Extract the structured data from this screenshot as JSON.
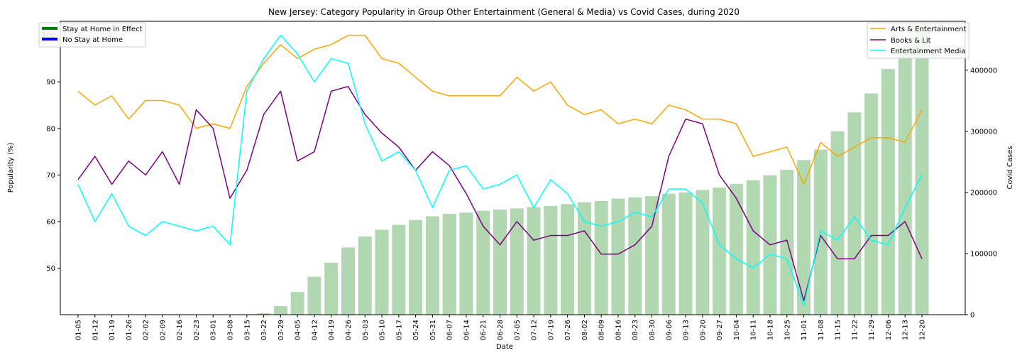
{
  "chart_data": {
    "type": "line",
    "title": "New Jersey: Category Popularity in Group Other Entertainment (General & Media) vs Covid Cases, during 2020",
    "xlabel": "Date",
    "ylabel": "Popularity (%)",
    "y2label": "Covid Cases",
    "ylim": [
      40,
      103
    ],
    "y2lim": [
      0,
      480000
    ],
    "y_ticks": [
      50,
      60,
      70,
      80,
      90,
      100
    ],
    "y2_ticks": [
      0,
      100000,
      200000,
      300000,
      400000
    ],
    "categories": [
      "01-05",
      "01-12",
      "01-19",
      "01-26",
      "02-02",
      "02-09",
      "02-16",
      "02-23",
      "03-01",
      "03-08",
      "03-15",
      "03-22",
      "03-29",
      "04-05",
      "04-12",
      "04-19",
      "04-26",
      "05-03",
      "05-10",
      "05-17",
      "05-24",
      "05-31",
      "06-07",
      "06-14",
      "06-21",
      "06-28",
      "07-05",
      "07-12",
      "07-19",
      "07-26",
      "08-02",
      "08-09",
      "08-16",
      "08-23",
      "08-30",
      "09-06",
      "09-13",
      "09-20",
      "09-27",
      "10-04",
      "10-11",
      "10-18",
      "10-25",
      "11-01",
      "11-08",
      "11-15",
      "11-22",
      "11-29",
      "12-06",
      "12-13",
      "12-20"
    ],
    "series": [
      {
        "name": "Arts & Entertainment",
        "color": "#FFA500",
        "values": [
          88,
          85,
          87,
          82,
          86,
          86,
          85,
          80,
          81,
          80,
          89,
          94,
          98,
          95,
          97,
          98,
          100,
          100,
          95,
          94,
          91,
          88,
          87,
          87,
          87,
          87,
          91,
          88,
          90,
          85,
          83,
          84,
          81,
          82,
          81,
          85,
          84,
          82,
          82,
          81,
          74,
          75,
          76,
          68,
          77,
          74,
          76,
          78,
          78,
          77,
          84
        ]
      },
      {
        "name": "Books & Lit",
        "color": "#800080",
        "values": [
          69,
          74,
          68,
          73,
          70,
          75,
          68,
          84,
          80,
          65,
          71,
          83,
          88,
          73,
          75,
          88,
          89,
          83,
          79,
          76,
          71,
          75,
          72,
          66,
          59,
          55,
          60,
          56,
          57,
          57,
          58,
          53,
          53,
          55,
          59,
          74,
          82,
          81,
          70,
          65,
          58,
          55,
          56,
          43,
          57,
          52,
          52,
          57,
          57,
          60,
          52
        ]
      },
      {
        "name": "Entertainment Media",
        "color": "#00FFFF",
        "values": [
          68,
          60,
          66,
          59,
          57,
          60,
          59,
          58,
          59,
          55,
          88,
          95,
          100,
          96,
          90,
          95,
          94,
          81,
          73,
          75,
          71,
          63,
          71,
          72,
          67,
          68,
          70,
          63,
          69,
          66,
          60,
          59,
          60,
          62,
          61,
          67,
          67,
          64,
          55,
          52,
          50,
          53,
          52,
          42,
          58,
          56,
          61,
          56,
          55,
          63,
          70
        ]
      }
    ],
    "bars": {
      "name": "Covid Cases",
      "color": "#B2D8B2",
      "values": [
        0,
        0,
        0,
        0,
        0,
        0,
        0,
        0,
        0,
        0,
        0,
        2500,
        14000,
        37000,
        62000,
        85000,
        110000,
        128000,
        139000,
        147000,
        155000,
        161000,
        165000,
        167000,
        170000,
        172000,
        174000,
        176000,
        178000,
        181000,
        184000,
        186000,
        190000,
        192000,
        194000,
        198000,
        200000,
        204000,
        208000,
        214000,
        220000,
        228000,
        237000,
        253000,
        270000,
        300000,
        331000,
        362000,
        402000,
        440000,
        475000
      ]
    },
    "legend_left": [
      {
        "label": "Stay at Home in Effect",
        "color": "#008000"
      },
      {
        "label": "No Stay at Home",
        "color": "#0000FF"
      }
    ],
    "legend_right_placement": "top-right",
    "legend_left_placement": "top-left",
    "grid": false
  }
}
